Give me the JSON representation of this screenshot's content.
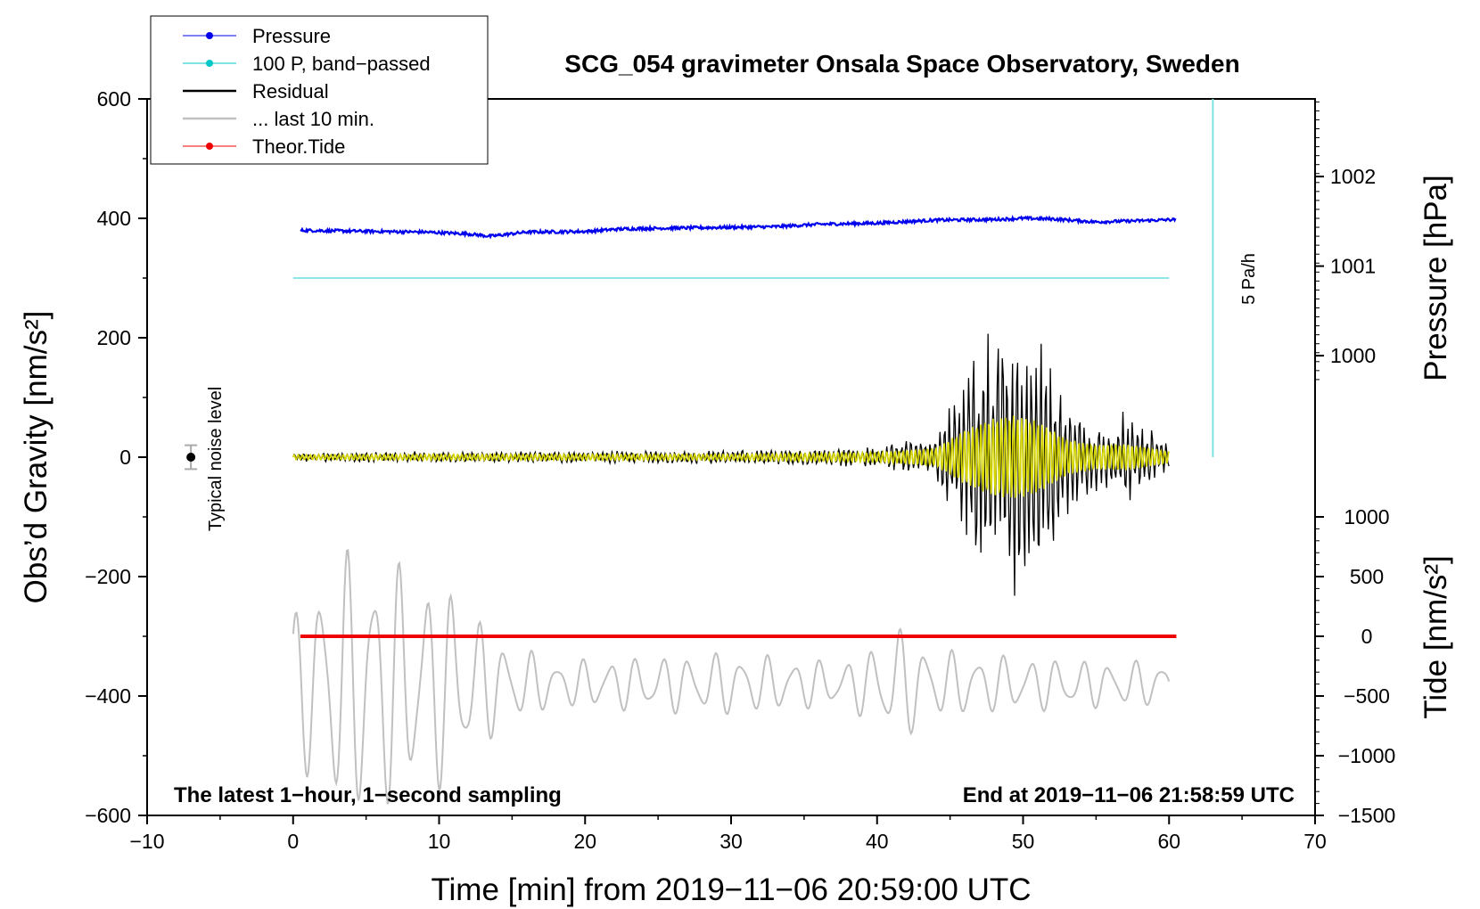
{
  "chart_data": {
    "type": "line",
    "title": "SCG_054 gravimeter Onsala Space Observatory, Sweden",
    "xlabel": "Time [min] from 2019−11−06 20:59:00 UTC",
    "ylabel": "Obs’d Gravity [nm/s²]",
    "ylabel_right_top": "Pressure [hPa]",
    "ylabel_right_bottom": "Tide [nm/s²]",
    "xlim": [
      -10,
      70
    ],
    "ylim": [
      -600,
      600
    ],
    "xticks": [
      -10,
      0,
      10,
      20,
      30,
      40,
      50,
      60,
      70
    ],
    "xtick_labels": [
      "−10",
      "0",
      "10",
      "20",
      "30",
      "40",
      "50",
      "60",
      "70"
    ],
    "yticks": [
      -600,
      -400,
      -200,
      0,
      200,
      400,
      600
    ],
    "ytick_labels": [
      "−600",
      "−400",
      "−200",
      "0",
      "200",
      "400",
      "600"
    ],
    "pressure_axis": {
      "ticks": [
        1000,
        1001,
        1002
      ],
      "tick_labels": [
        "1000",
        "1001",
        "1002"
      ],
      "gravity_equiv": [
        170,
        320,
        470
      ]
    },
    "tide_axis": {
      "ticks": [
        -1500,
        -1000,
        -500,
        0,
        500,
        1000
      ],
      "tick_labels": [
        "−1500",
        "−1000",
        "−500",
        "0",
        "500",
        "1000"
      ],
      "gravity_offset": -300,
      "scale": 0.2
    },
    "legend_position": "top-left",
    "legend": [
      "Pressure",
      "100 P, band−passed",
      "Residual",
      "... last 10 min.",
      "Theor.Tide"
    ],
    "series": [
      {
        "name": "Pressure",
        "color": "#0000ee",
        "x": [
          0.5,
          3,
          6,
          9,
          12,
          13.5,
          16,
          20,
          22.3,
          24,
          27,
          30,
          33,
          36,
          40,
          44,
          48,
          50,
          52,
          55,
          58,
          60.5
        ],
        "y": [
          380,
          379,
          378,
          377,
          374,
          370,
          377,
          378,
          382,
          383,
          384,
          385,
          386,
          390,
          392,
          397,
          398,
          400,
          399,
          394,
          396,
          398
        ]
      },
      {
        "name": "100 P, band−passed",
        "color": "#00c8c8",
        "x": [
          0,
          60
        ],
        "y": [
          300,
          300
        ]
      },
      {
        "name": "Residual",
        "color": "#000000",
        "x": [
          0,
          10,
          20,
          30,
          40,
          44,
          46,
          48,
          49.5,
          51,
          53,
          55,
          57,
          60
        ],
        "y_envelope": [
          8,
          10,
          10,
          12,
          18,
          40,
          150,
          230,
          250,
          220,
          100,
          60,
          80,
          30
        ]
      },
      {
        "name": "band−passed residual",
        "color": "#d7d700",
        "x": [
          0,
          10,
          20,
          30,
          40,
          44,
          46,
          48,
          49.5,
          51,
          53,
          55,
          57,
          60
        ],
        "y_envelope": [
          4,
          5,
          5,
          5,
          8,
          15,
          45,
          65,
          70,
          60,
          30,
          20,
          22,
          10
        ]
      },
      {
        "name": "... last 10 min.",
        "color": "#c0c0c0",
        "x": [
          0,
          2,
          5,
          8,
          11,
          14,
          18,
          22,
          26,
          30,
          34,
          38,
          41.5,
          44,
          48,
          52,
          56,
          60
        ],
        "y_envelope": [
          120,
          210,
          240,
          200,
          170,
          80,
          40,
          45,
          50,
          55,
          45,
          40,
          100,
          60,
          50,
          45,
          40,
          40
        ],
        "y_center": -380
      },
      {
        "name": "Theor.Tide",
        "color": "#ee0000",
        "x": [
          0.5,
          60.5
        ],
        "y": [
          -300,
          -300
        ]
      }
    ],
    "noise_marker": {
      "x": -7,
      "y": 0,
      "err": 20,
      "label": "Typical noise level"
    },
    "pressure_rate_bar": {
      "x": 63,
      "y_top": 600,
      "y_bottom": 0,
      "label": "5 Pa/h"
    },
    "annotation_left": "The latest 1−hour, 1−second sampling",
    "annotation_right": "End at 2019−11−06 21:58:59 UTC"
  }
}
